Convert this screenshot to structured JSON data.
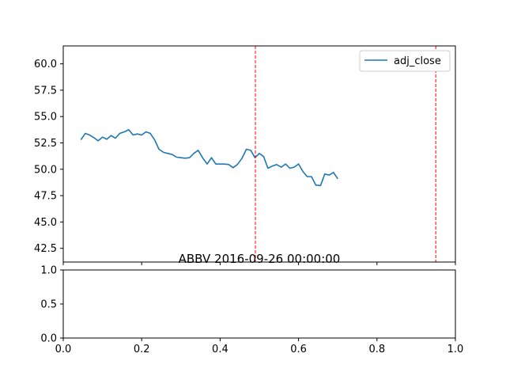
{
  "chart_data": [
    {
      "type": "line",
      "title": "",
      "xlabel": "",
      "ylabel": "",
      "xlim": [
        0.0,
        1.0
      ],
      "ylim": [
        41.2,
        61.7
      ],
      "yticks": [
        "42.5",
        "45.0",
        "47.5",
        "50.0",
        "52.5",
        "55.0",
        "57.5",
        "60.0"
      ],
      "grid": false,
      "legend": {
        "placement": "top-right",
        "entries": [
          "adj_close"
        ]
      },
      "series": [
        {
          "name": "adj_close",
          "color": "#1f77b4",
          "x": [
            0.045,
            0.056,
            0.067,
            0.078,
            0.089,
            0.1,
            0.111,
            0.122,
            0.133,
            0.144,
            0.156,
            0.167,
            0.178,
            0.189,
            0.2,
            0.211,
            0.222,
            0.233,
            0.244,
            0.256,
            0.267,
            0.278,
            0.289,
            0.3,
            0.311,
            0.322,
            0.333,
            0.344,
            0.356,
            0.367,
            0.378,
            0.389,
            0.4,
            0.411,
            0.422,
            0.433,
            0.444,
            0.456,
            0.467,
            0.478,
            0.489,
            0.5,
            0.511,
            0.522,
            0.533,
            0.544,
            0.556,
            0.567,
            0.578,
            0.589,
            0.6,
            0.611,
            0.622,
            0.633,
            0.644,
            0.656,
            0.667,
            0.678,
            0.689,
            0.7
          ],
          "y": [
            52.8,
            53.4,
            53.25,
            53.0,
            52.7,
            53.05,
            52.85,
            53.2,
            52.95,
            53.4,
            53.55,
            53.75,
            53.25,
            53.35,
            53.25,
            53.55,
            53.4,
            52.8,
            51.9,
            51.6,
            51.5,
            51.4,
            51.15,
            51.1,
            51.05,
            51.1,
            51.5,
            51.8,
            51.05,
            50.5,
            51.1,
            50.5,
            50.5,
            50.5,
            50.45,
            50.15,
            50.45,
            51.05,
            51.9,
            51.8,
            51.1,
            51.5,
            51.2,
            50.1,
            50.3,
            50.45,
            50.2,
            50.5,
            50.1,
            50.2,
            50.5,
            49.8,
            49.3,
            49.3,
            48.5,
            48.45,
            49.55,
            49.45,
            49.7,
            49.1
          ]
        }
      ],
      "vlines": [
        {
          "x": 0.49,
          "color": "#ff0000",
          "style": "dashed"
        },
        {
          "x": 0.95,
          "color": "#ff0000",
          "style": "dashed"
        }
      ]
    },
    {
      "type": "line",
      "title": "ABBV 2016-09-26 00:00:00",
      "xlabel": "",
      "ylabel": "",
      "xlim": [
        0.0,
        1.0
      ],
      "ylim": [
        0.0,
        1.0
      ],
      "xticks": [
        "0.0",
        "0.2",
        "0.4",
        "0.6",
        "0.8",
        "1.0"
      ],
      "yticks": [
        "0.0",
        "0.5",
        "1.0"
      ],
      "grid": false,
      "series": []
    }
  ]
}
